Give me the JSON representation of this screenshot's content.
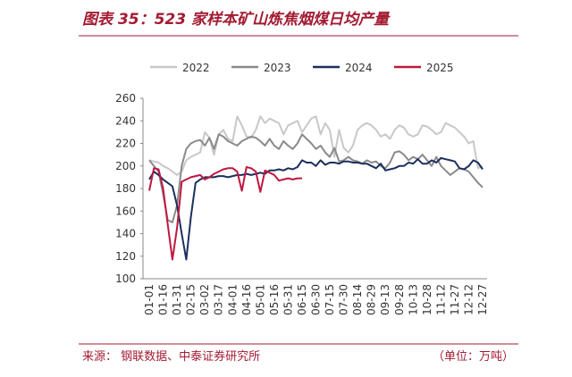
{
  "chart_data": {
    "type": "line",
    "title": "图表 35：523 家样本矿山炼焦烟煤日均产量",
    "source": "来源：  钢联数据、中泰证券研究所",
    "unit": "（单位：万吨）",
    "categories": [
      "01-01",
      null,
      null,
      "01-16",
      null,
      null,
      "01-31",
      null,
      null,
      "02-15",
      null,
      null,
      "03-02",
      null,
      null,
      "03-17",
      null,
      null,
      "04-01",
      null,
      null,
      "04-16",
      null,
      null,
      "05-01",
      null,
      null,
      "05-16",
      null,
      null,
      "05-31",
      null,
      null,
      "06-15",
      null,
      null,
      "06-30",
      null,
      null,
      "07-15",
      null,
      null,
      "07-30",
      null,
      null,
      "08-14",
      null,
      null,
      "08-29",
      null,
      null,
      "09-13",
      null,
      null,
      "09-28",
      null,
      null,
      "10-13",
      null,
      null,
      "10-28",
      null,
      null,
      "11-12",
      null,
      null,
      "11-27",
      null,
      null,
      "12-12",
      null,
      null,
      "12-27"
    ],
    "series": [
      {
        "name": "2022",
        "color": "#c8c8c8",
        "values": [
          205,
          204,
          203,
          200,
          198,
          195,
          192,
          195,
          205,
          208,
          210,
          212,
          230,
          225,
          210,
          228,
          232,
          224,
          222,
          244,
          236,
          226,
          225,
          232,
          244,
          238,
          242,
          240,
          238,
          228,
          236,
          238,
          240,
          230,
          236,
          242,
          244,
          228,
          238,
          232,
          208,
          232,
          216,
          212,
          218,
          232,
          236,
          238,
          236,
          232,
          226,
          228,
          224,
          232,
          236,
          234,
          228,
          226,
          228,
          236,
          235,
          232,
          228,
          230,
          238,
          236,
          234,
          230,
          226,
          220,
          222,
          198,
          200
        ]
      },
      {
        "name": "2023",
        "color": "#8a8a8a",
        "values": [
          205,
          200,
          195,
          175,
          152,
          150,
          165,
          200,
          215,
          220,
          222,
          223,
          218,
          225,
          215,
          228,
          226,
          222,
          220,
          218,
          222,
          224,
          226,
          225,
          222,
          218,
          224,
          218,
          215,
          222,
          218,
          215,
          220,
          228,
          224,
          220,
          215,
          218,
          212,
          208,
          216,
          204,
          205,
          208,
          205,
          204,
          202,
          205,
          203,
          204,
          200,
          198,
          203,
          212,
          213,
          210,
          205,
          208,
          206,
          210,
          205,
          200,
          208,
          200,
          196,
          192,
          195,
          198,
          197,
          195,
          190,
          185,
          181
        ]
      },
      {
        "name": "2024",
        "color": "#1b2f5e",
        "values": [
          188,
          195,
          192,
          188,
          185,
          182,
          165,
          140,
          117,
          155,
          185,
          188,
          190,
          190,
          190,
          191,
          191,
          190,
          191,
          192,
          192,
          193,
          192,
          193,
          194,
          193,
          196,
          196,
          197,
          196,
          198,
          197,
          199,
          205,
          203,
          203,
          200,
          205,
          201,
          203,
          203,
          202,
          204,
          204,
          203,
          203,
          202,
          202,
          200,
          198,
          202,
          196,
          197,
          198,
          200,
          200,
          203,
          202,
          206,
          202,
          202,
          205,
          203,
          207,
          206,
          205,
          204,
          198,
          197,
          200,
          205,
          203,
          197
        ]
      },
      {
        "name": "2025",
        "color": "#c0173f",
        "values": [
          178,
          198,
          197,
          180,
          148,
          117,
          145,
          186,
          188,
          190,
          191,
          192,
          188,
          190,
          193,
          195,
          197,
          198,
          198,
          195,
          178,
          199,
          198,
          195,
          177,
          196,
          194,
          192,
          187,
          188,
          189,
          188,
          189,
          189,
          null,
          null,
          null,
          null,
          null,
          null,
          null,
          null,
          null,
          null,
          null,
          null,
          null,
          null,
          null,
          null,
          null,
          null,
          null,
          null,
          null,
          null,
          null,
          null,
          null,
          null,
          null,
          null,
          null,
          null,
          null,
          null,
          null,
          null,
          null,
          null,
          null,
          null,
          null
        ]
      }
    ],
    "ylim": [
      100,
      260
    ],
    "yticks": [
      100,
      120,
      140,
      160,
      180,
      200,
      220,
      240,
      260
    ],
    "grid": false
  }
}
